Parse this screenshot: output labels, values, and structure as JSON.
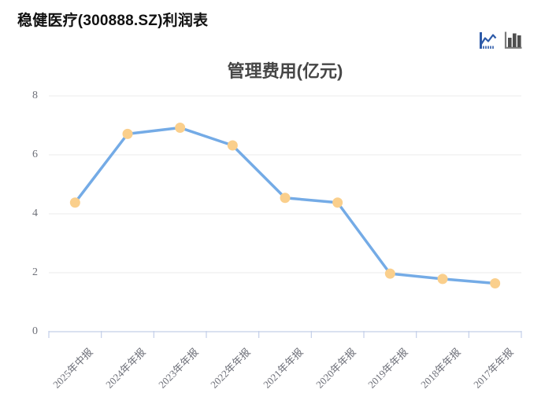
{
  "page": {
    "title": "稳健医疗(300888.SZ)利润表"
  },
  "toolbar": {
    "icons": [
      {
        "name": "line-chart-icon",
        "active": true,
        "color": "#2d5aa8"
      },
      {
        "name": "bar-chart-icon",
        "active": false,
        "color": "#4f4f4f"
      }
    ]
  },
  "chart_data": {
    "type": "line",
    "title": "管理费用(亿元)",
    "categories": [
      "2025年中报",
      "2024年年报",
      "2023年年报",
      "2022年年报",
      "2021年年报",
      "2020年年报",
      "2019年年报",
      "2018年年报",
      "2017年年报"
    ],
    "values": [
      4.38,
      6.71,
      6.92,
      6.32,
      4.54,
      4.38,
      1.97,
      1.79,
      1.64
    ],
    "xlabel": "",
    "ylabel": "",
    "y_ticks": [
      0,
      2,
      4,
      6,
      8
    ],
    "ylim": [
      0,
      8
    ],
    "grid": true,
    "legend_position": "none",
    "colors": {
      "line": "#74abe6",
      "marker": "#facf8c",
      "axis_line": "#c3cfe8",
      "grid_line": "#ebebeb",
      "tick_label": "#6e7079",
      "title": "#464646"
    }
  }
}
